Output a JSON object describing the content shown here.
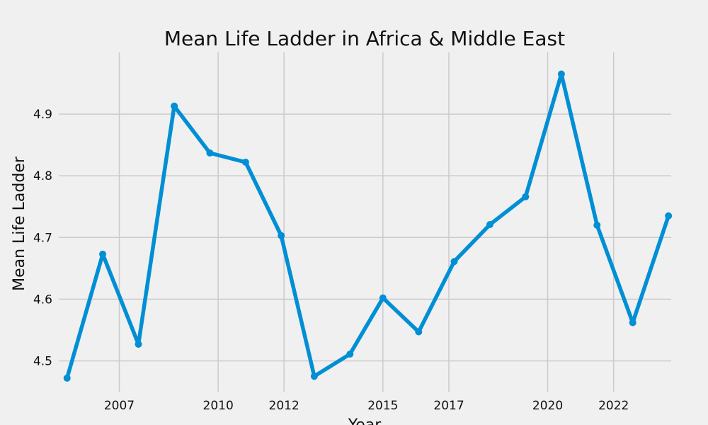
{
  "chart_data": {
    "type": "line",
    "title": "Mean Life Ladder in Africa & Middle East",
    "xlabel": "Year",
    "ylabel": "Mean Life Ladder",
    "x_ticks": [
      {
        "value": "2007-01-01",
        "label": "2007"
      },
      {
        "value": "2010-01-01",
        "label": "2010"
      },
      {
        "value": "2012-01-01",
        "label": "2012"
      },
      {
        "value": "2015-01-01",
        "label": "2015"
      },
      {
        "value": "2017-01-01",
        "label": "2017"
      },
      {
        "value": "2020-01-01",
        "label": "2020"
      },
      {
        "value": "2022-01-01",
        "label": "2022"
      }
    ],
    "y_ticks": [
      4.5,
      4.6,
      4.7,
      4.8,
      4.9
    ],
    "xlim": [
      "2005-03-01",
      "2023-10-01"
    ],
    "ylim": [
      4.45,
      5.0
    ],
    "grid": true,
    "color": "#008fd5",
    "series": [
      {
        "x": [
          "2005-06-01",
          "2006-07-01",
          "2007-08-01",
          "2008-09-01",
          "2009-10-01",
          "2010-11-01",
          "2011-12-01",
          "2012-12-01",
          "2014-01-01",
          "2015-01-01",
          "2016-02-01",
          "2017-03-01",
          "2018-04-01",
          "2019-05-01",
          "2020-06-01",
          "2021-07-01",
          "2022-08-01",
          "2023-09-01"
        ],
        "y": [
          4.472,
          4.673,
          4.527,
          4.913,
          4.837,
          4.822,
          4.703,
          4.475,
          4.511,
          4.602,
          4.547,
          4.661,
          4.721,
          4.766,
          4.965,
          4.72,
          4.562,
          4.735
        ]
      }
    ]
  }
}
